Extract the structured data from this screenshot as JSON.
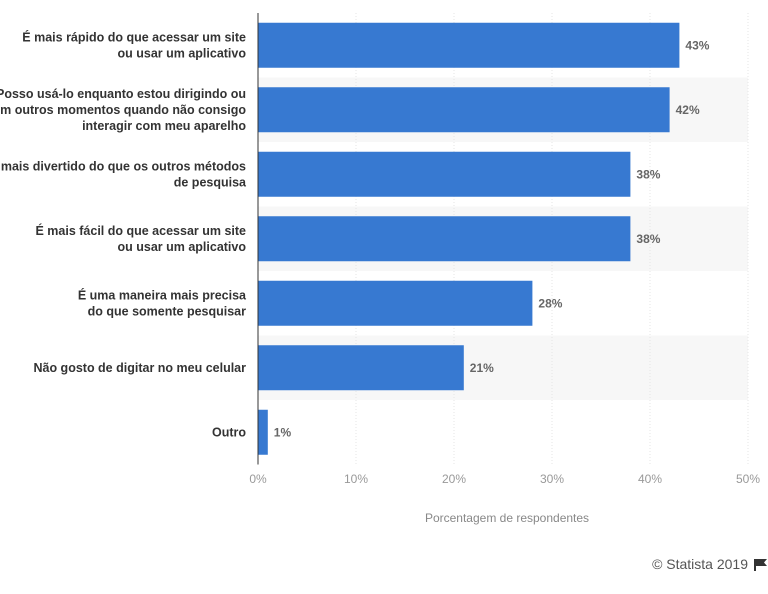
{
  "chart_data": {
    "type": "bar",
    "orientation": "horizontal",
    "categories": [
      [
        "É mais rápido do que acessar um site",
        "ou usar um aplicativo"
      ],
      [
        "Posso usá-lo enquanto estou dirigindo ou",
        "em outros momentos quando não consigo",
        "interagir com meu aparelho"
      ],
      [
        "É mais divertido do que os outros métodos",
        "de pesquisa"
      ],
      [
        "É mais fácil do que acessar um site",
        "ou usar um aplicativo"
      ],
      [
        "É uma maneira mais precisa",
        "do que somente pesquisar"
      ],
      [
        "Não gosto de digitar no meu celular"
      ],
      [
        "Outro"
      ]
    ],
    "values": [
      43,
      42,
      38,
      38,
      28,
      21,
      1
    ],
    "value_labels": [
      "43%",
      "42%",
      "38%",
      "38%",
      "28%",
      "21%",
      "1%"
    ],
    "xlabel": "Porcentagem de respondentes",
    "xlim": [
      0,
      50
    ],
    "ticks": [
      0,
      10,
      20,
      30,
      40,
      50
    ],
    "tick_labels": [
      "0%",
      "10%",
      "20%",
      "30%",
      "40%",
      "50%"
    ],
    "grid": true,
    "bar_color": "#3779d1",
    "band_color": "#f7f7f7"
  },
  "footer": {
    "credit": "© Statista 2019",
    "flag_icon": "flag-icon"
  }
}
